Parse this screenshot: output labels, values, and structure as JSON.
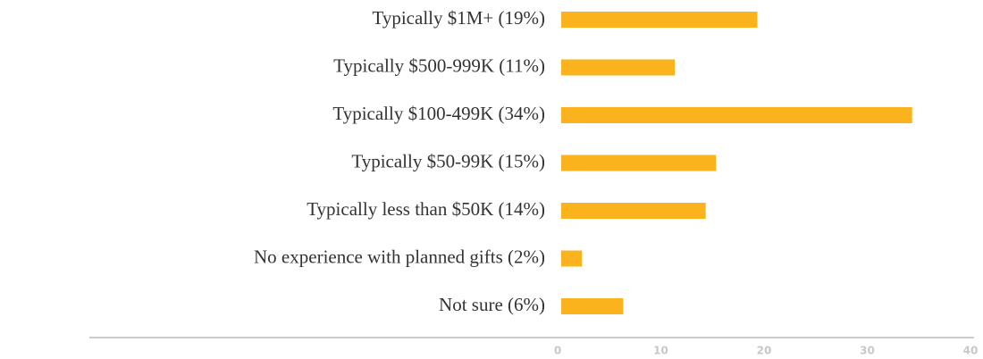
{
  "chart_data": {
    "type": "bar",
    "orientation": "horizontal",
    "categories": [
      "Typically $1M+ (19%)",
      "Typically $500-999K (11%)",
      "Typically $100-499K (34%)",
      "Typically $50-99K (15%)",
      "Typically less than $50K (14%)",
      "No experience with planned gifts (2%)",
      "Not sure (6%)"
    ],
    "values": [
      19,
      11,
      34,
      15,
      14,
      2,
      6
    ],
    "color": "#fbb31d",
    "xlim": [
      0,
      40
    ],
    "xticks": [
      0,
      10,
      20,
      30,
      40
    ],
    "grid": false
  }
}
